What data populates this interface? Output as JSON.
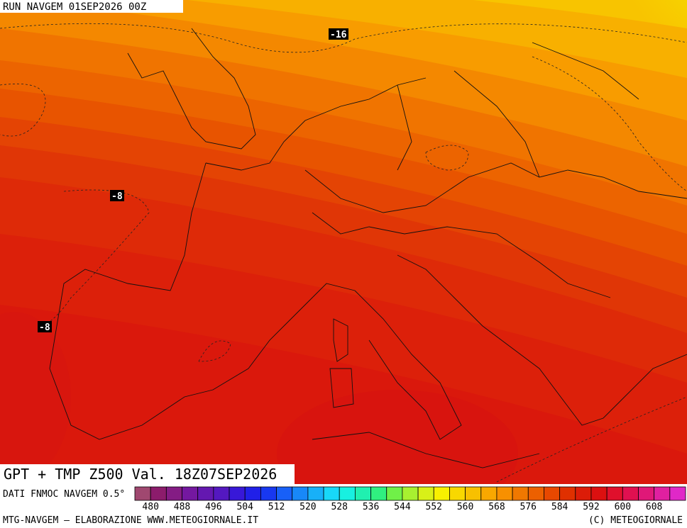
{
  "header": {
    "run": "RUN NAVGEM 01SEP2026 00Z"
  },
  "map": {
    "title": "GPT + TMP Z500 Val. 18Z07SEP2026",
    "contour_labels": [
      "-16",
      "-8",
      "-8"
    ]
  },
  "legend": {
    "source": "DATI FNMOC NAVGEM 0.5°",
    "colors": [
      "#a04870",
      "#8c1c6c",
      "#841c84",
      "#7418a0",
      "#6418b0",
      "#5418c0",
      "#3818d8",
      "#2020e8",
      "#1838f0",
      "#1860f8",
      "#1888f8",
      "#18b0f8",
      "#18d8f8",
      "#18f0e0",
      "#20f0b0",
      "#30f080",
      "#70f048",
      "#a8f030",
      "#d8f018",
      "#f8f000",
      "#f8d800",
      "#f8c000",
      "#f8a800",
      "#f89000",
      "#f07800",
      "#ec6000",
      "#e84800",
      "#e03000",
      "#dc1c08",
      "#dc1010",
      "#e0102c",
      "#e01050",
      "#e01878",
      "#e020a0",
      "#e028c8"
    ],
    "labels": [
      480,
      488,
      496,
      504,
      512,
      520,
      528,
      536,
      544,
      552,
      560,
      568,
      576,
      584,
      592,
      600,
      608
    ]
  },
  "footer": {
    "left": "MTG-NAVGEM – ELABORAZIONE WWW.METEOGIORNALE.IT",
    "right": "(C) METEOGIORNALE"
  }
}
